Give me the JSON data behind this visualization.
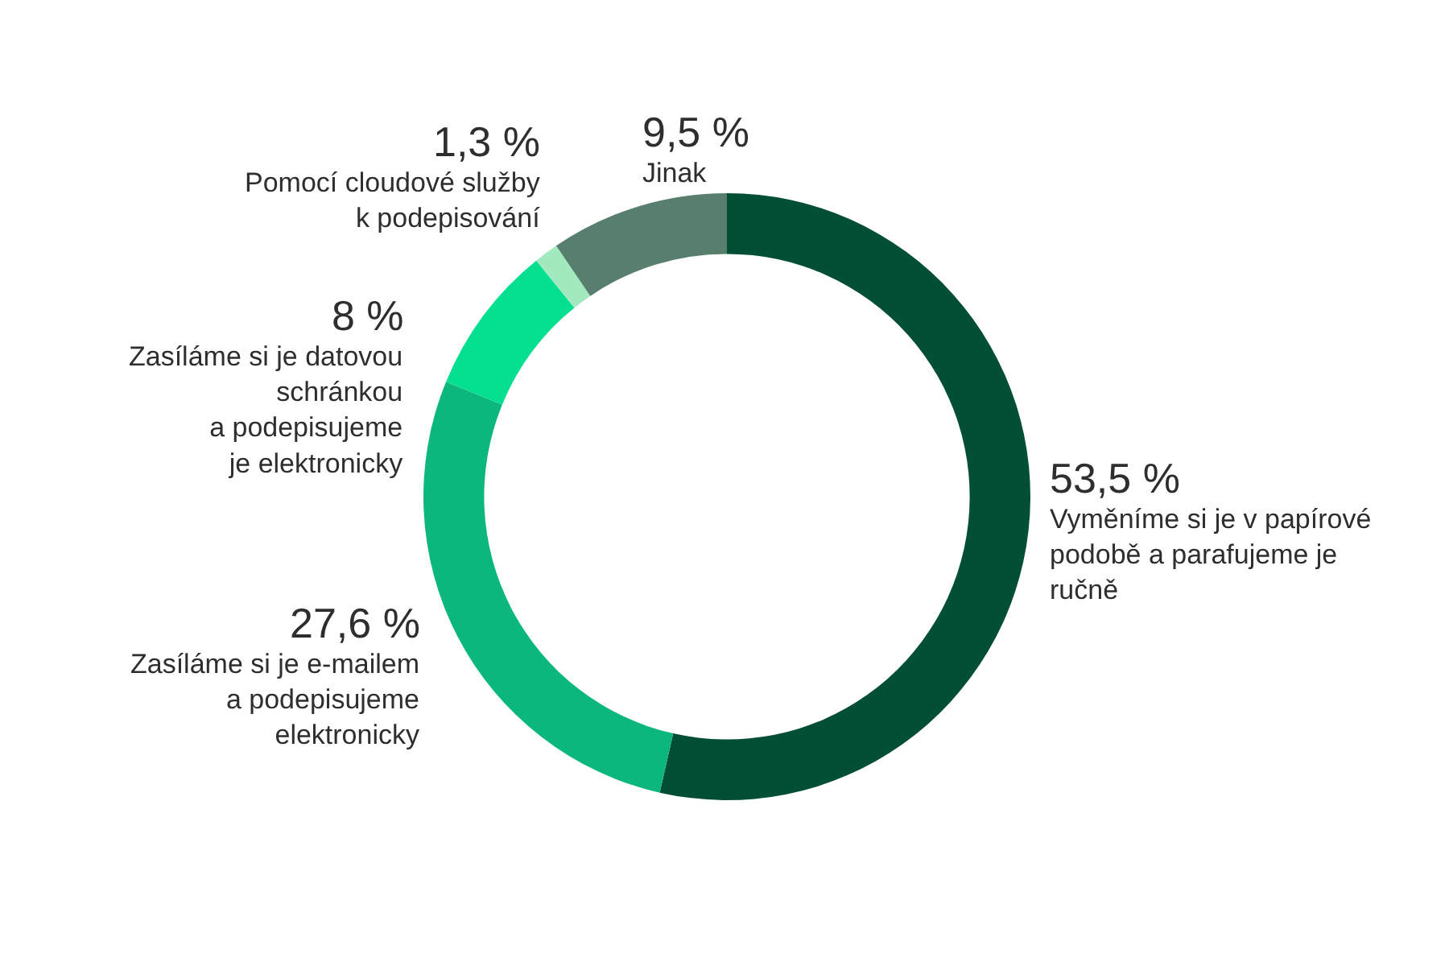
{
  "chart_data": {
    "type": "donut",
    "categories": [
      "Vyměníme si je v papírové\npodobě a parafujeme je\nručně",
      "Zasíláme si je e-mailem\na podepisujeme\nelektronicky",
      "Zasíláme si je datovou\nschránkou\na podepisujeme\nje elektronicky",
      "Pomocí cloudové služby\nk podepisování",
      "Jinak"
    ],
    "values": [
      53.5,
      27.6,
      8,
      1.3,
      9.5
    ],
    "colors": [
      "#034f36",
      "#0cb77d",
      "#04df90",
      "#a3e9c0",
      "#587e6e"
    ],
    "value_labels": [
      "53,5 %",
      "27,6 %",
      "8 %",
      "1,3 %",
      "9,5 %"
    ]
  }
}
